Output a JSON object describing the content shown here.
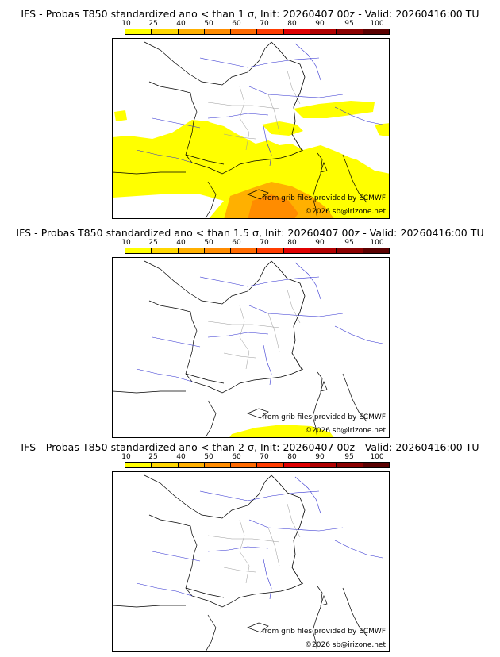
{
  "scale": {
    "ticks": [
      "10",
      "25",
      "40",
      "50",
      "60",
      "70",
      "80",
      "90",
      "95",
      "100"
    ],
    "colors": [
      "#ffff00",
      "#ffd700",
      "#ffb000",
      "#ff8c00",
      "#ff6a00",
      "#ff3c00",
      "#e00000",
      "#b00000",
      "#8b0000",
      "#5a0000"
    ]
  },
  "panels": [
    {
      "title": "IFS - Probas T850  standardized ano < than 1 σ, Init: 20260407 00z - Valid: 20260416:00 TU",
      "credit_source": "from grib files provided by ECMWF",
      "credit_copyright": "©2026 sb@irizone.net"
    },
    {
      "title": "IFS - Probas T850  standardized ano < than 1.5 σ, Init: 20260407 00z - Valid: 20260416:00 TU",
      "credit_source": "from grib files provided by ECMWF",
      "credit_copyright": "©2026 sb@irizone.net"
    },
    {
      "title": "IFS - Probas T850  standardized ano < than 2 σ, Init: 20260407 00z - Valid: 20260416:00 TU",
      "credit_source": "from grib files provided by ECMWF",
      "credit_copyright": "©2026 sb@irizone.net"
    }
  ]
}
